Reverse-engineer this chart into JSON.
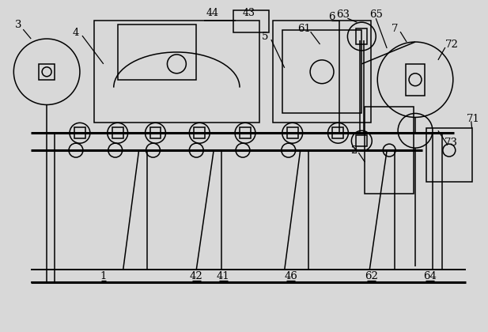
{
  "bg_color": "#d8d8d8",
  "line_color": "#000000",
  "lw": 1.1,
  "fw": 6.17,
  "fh": 4.2,
  "dpi": 100
}
